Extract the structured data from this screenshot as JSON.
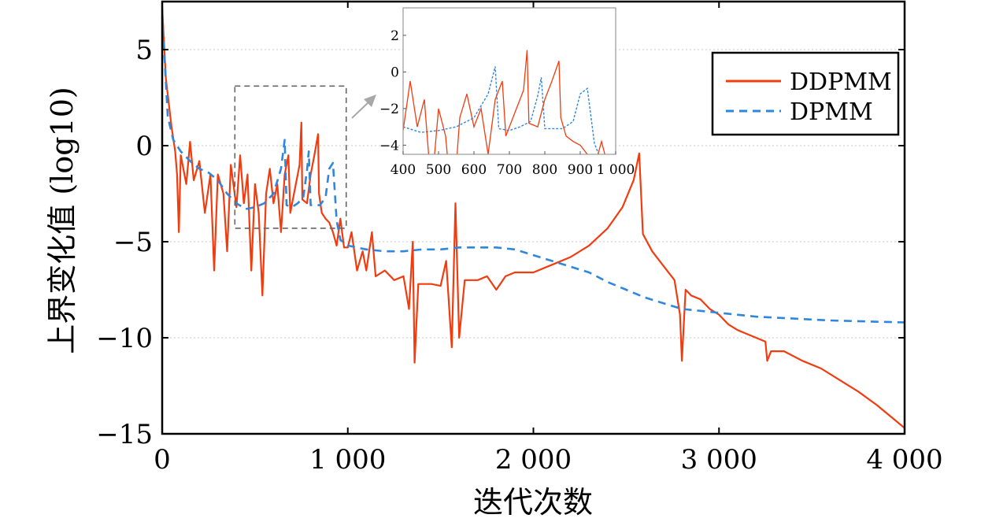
{
  "chart_data": {
    "type": "line",
    "title": "",
    "xlabel": "迭代次数",
    "ylabel": "上界变化值 (log10)",
    "xlim": [
      0,
      4000
    ],
    "ylim": [
      -15,
      7.5
    ],
    "x_ticks": [
      0,
      1000,
      2000,
      3000,
      4000
    ],
    "x_tick_labels": [
      "0",
      "1 000",
      "2 000",
      "3 000",
      "4 000"
    ],
    "y_ticks": [
      5,
      0,
      -5,
      -10,
      -15
    ],
    "y_tick_labels": [
      "5",
      "0",
      "−5",
      "−10",
      "−15"
    ],
    "grid": "horizontal dotted at y ticks",
    "legend": {
      "placement": "top-right",
      "entries": [
        "DDPMM",
        "DPMM"
      ]
    },
    "series": [
      {
        "name": "DDPMM",
        "color": "#f03c0f",
        "style": "solid",
        "points": [
          [
            0,
            7.2
          ],
          [
            20,
            3.5
          ],
          [
            50,
            1.0
          ],
          [
            70,
            -0.3
          ],
          [
            80,
            -1.5
          ],
          [
            90,
            -4.5
          ],
          [
            100,
            -0.5
          ],
          [
            130,
            -2.0
          ],
          [
            150,
            0.2
          ],
          [
            170,
            -1.8
          ],
          [
            200,
            -0.8
          ],
          [
            230,
            -3.5
          ],
          [
            260,
            -1.5
          ],
          [
            280,
            -6.5
          ],
          [
            300,
            -1.5
          ],
          [
            330,
            -2.5
          ],
          [
            350,
            -5.5
          ],
          [
            370,
            -1.0
          ],
          [
            400,
            -3.2
          ],
          [
            420,
            -0.5
          ],
          [
            440,
            -3.0
          ],
          [
            460,
            -1.5
          ],
          [
            480,
            -6.5
          ],
          [
            500,
            -2.0
          ],
          [
            520,
            -3.5
          ],
          [
            540,
            -7.8
          ],
          [
            560,
            -2.5
          ],
          [
            580,
            -1.2
          ],
          [
            600,
            -3.0
          ],
          [
            620,
            -2.0
          ],
          [
            640,
            -4.5
          ],
          [
            660,
            -1.5
          ],
          [
            680,
            -0.5
          ],
          [
            690,
            -3.5
          ],
          [
            710,
            -2.5
          ],
          [
            740,
            -1.0
          ],
          [
            750,
            1.2
          ],
          [
            755,
            -2.8
          ],
          [
            780,
            -3.0
          ],
          [
            800,
            -1.5
          ],
          [
            820,
            -0.5
          ],
          [
            840,
            0.6
          ],
          [
            845,
            -2.5
          ],
          [
            860,
            -3.5
          ],
          [
            880,
            -3.8
          ],
          [
            900,
            -4.0
          ],
          [
            920,
            -4.5
          ],
          [
            940,
            -5.2
          ],
          [
            960,
            -3.8
          ],
          [
            980,
            -5.3
          ],
          [
            1000,
            -5.3
          ],
          [
            1020,
            -4.5
          ],
          [
            1050,
            -6.5
          ],
          [
            1080,
            -5.5
          ],
          [
            1100,
            -6.5
          ],
          [
            1130,
            -4.5
          ],
          [
            1150,
            -6.8
          ],
          [
            1200,
            -6.5
          ],
          [
            1250,
            -7.0
          ],
          [
            1300,
            -6.8
          ],
          [
            1330,
            -8.5
          ],
          [
            1350,
            -5.0
          ],
          [
            1360,
            -11.3
          ],
          [
            1380,
            -7.2
          ],
          [
            1450,
            -7.2
          ],
          [
            1500,
            -7.3
          ],
          [
            1530,
            -6.0
          ],
          [
            1560,
            -10.5
          ],
          [
            1580,
            -3.0
          ],
          [
            1600,
            -10.0
          ],
          [
            1630,
            -7.0
          ],
          [
            1700,
            -7.0
          ],
          [
            1750,
            -6.8
          ],
          [
            1800,
            -7.5
          ],
          [
            1850,
            -6.8
          ],
          [
            1900,
            -6.6
          ],
          [
            2000,
            -6.6
          ],
          [
            2100,
            -6.2
          ],
          [
            2200,
            -5.8
          ],
          [
            2300,
            -5.2
          ],
          [
            2400,
            -4.3
          ],
          [
            2480,
            -3.2
          ],
          [
            2540,
            -1.8
          ],
          [
            2570,
            -0.4
          ],
          [
            2590,
            -4.6
          ],
          [
            2640,
            -5.5
          ],
          [
            2680,
            -6.0
          ],
          [
            2720,
            -6.5
          ],
          [
            2760,
            -7.0
          ],
          [
            2790,
            -8.8
          ],
          [
            2800,
            -11.2
          ],
          [
            2820,
            -7.5
          ],
          [
            2850,
            -7.8
          ],
          [
            2900,
            -8.0
          ],
          [
            2950,
            -8.5
          ],
          [
            3000,
            -8.8
          ],
          [
            3050,
            -9.3
          ],
          [
            3100,
            -9.6
          ],
          [
            3150,
            -9.8
          ],
          [
            3200,
            -10.0
          ],
          [
            3250,
            -10.2
          ],
          [
            3260,
            -11.2
          ],
          [
            3280,
            -10.7
          ],
          [
            3350,
            -10.7
          ],
          [
            3450,
            -11.2
          ],
          [
            3550,
            -11.6
          ],
          [
            3650,
            -12.2
          ],
          [
            3750,
            -12.8
          ],
          [
            3850,
            -13.5
          ],
          [
            3950,
            -14.3
          ],
          [
            4000,
            -14.7
          ]
        ]
      },
      {
        "name": "DPMM",
        "color": "#2f87dd",
        "style": "dashed",
        "points": [
          [
            0,
            6.8
          ],
          [
            30,
            1.5
          ],
          [
            60,
            0.3
          ],
          [
            100,
            -0.3
          ],
          [
            150,
            -0.8
          ],
          [
            200,
            -1.2
          ],
          [
            250,
            -1.4
          ],
          [
            300,
            -1.8
          ],
          [
            350,
            -2.5
          ],
          [
            400,
            -3.0
          ],
          [
            450,
            -3.3
          ],
          [
            500,
            -3.2
          ],
          [
            550,
            -3.0
          ],
          [
            600,
            -2.5
          ],
          [
            640,
            -1.2
          ],
          [
            660,
            0.3
          ],
          [
            670,
            -3.1
          ],
          [
            700,
            -3.2
          ],
          [
            730,
            -3.0
          ],
          [
            760,
            -2.7
          ],
          [
            780,
            -1.3
          ],
          [
            790,
            -0.3
          ],
          [
            800,
            -3.1
          ],
          [
            850,
            -3.1
          ],
          [
            880,
            -2.7
          ],
          [
            900,
            -1.2
          ],
          [
            920,
            -0.9
          ],
          [
            940,
            -3.9
          ],
          [
            960,
            -4.9
          ],
          [
            1000,
            -5.2
          ],
          [
            1100,
            -5.4
          ],
          [
            1200,
            -5.5
          ],
          [
            1300,
            -5.5
          ],
          [
            1400,
            -5.4
          ],
          [
            1500,
            -5.4
          ],
          [
            1600,
            -5.3
          ],
          [
            1700,
            -5.3
          ],
          [
            1800,
            -5.3
          ],
          [
            1900,
            -5.4
          ],
          [
            2000,
            -5.7
          ],
          [
            2100,
            -6.0
          ],
          [
            2200,
            -6.3
          ],
          [
            2300,
            -6.6
          ],
          [
            2400,
            -7.1
          ],
          [
            2500,
            -7.5
          ],
          [
            2600,
            -7.9
          ],
          [
            2700,
            -8.2
          ],
          [
            2800,
            -8.5
          ],
          [
            2900,
            -8.6
          ],
          [
            3000,
            -8.7
          ],
          [
            3200,
            -8.9
          ],
          [
            3400,
            -9.0
          ],
          [
            3600,
            -9.1
          ],
          [
            3800,
            -9.15
          ],
          [
            4000,
            -9.2
          ]
        ]
      }
    ],
    "inset": {
      "xlim": [
        400,
        1000
      ],
      "ylim": [
        -4.5,
        3.5
      ],
      "x_ticks": [
        400,
        500,
        600,
        700,
        800,
        900,
        1000
      ],
      "x_tick_labels": [
        "400",
        "500",
        "600",
        "700",
        "800",
        "900",
        "1 000"
      ],
      "y_ticks": [
        2,
        0,
        -2,
        -4
      ],
      "y_tick_labels": [
        "2",
        "0",
        "−2",
        "−4"
      ]
    }
  }
}
